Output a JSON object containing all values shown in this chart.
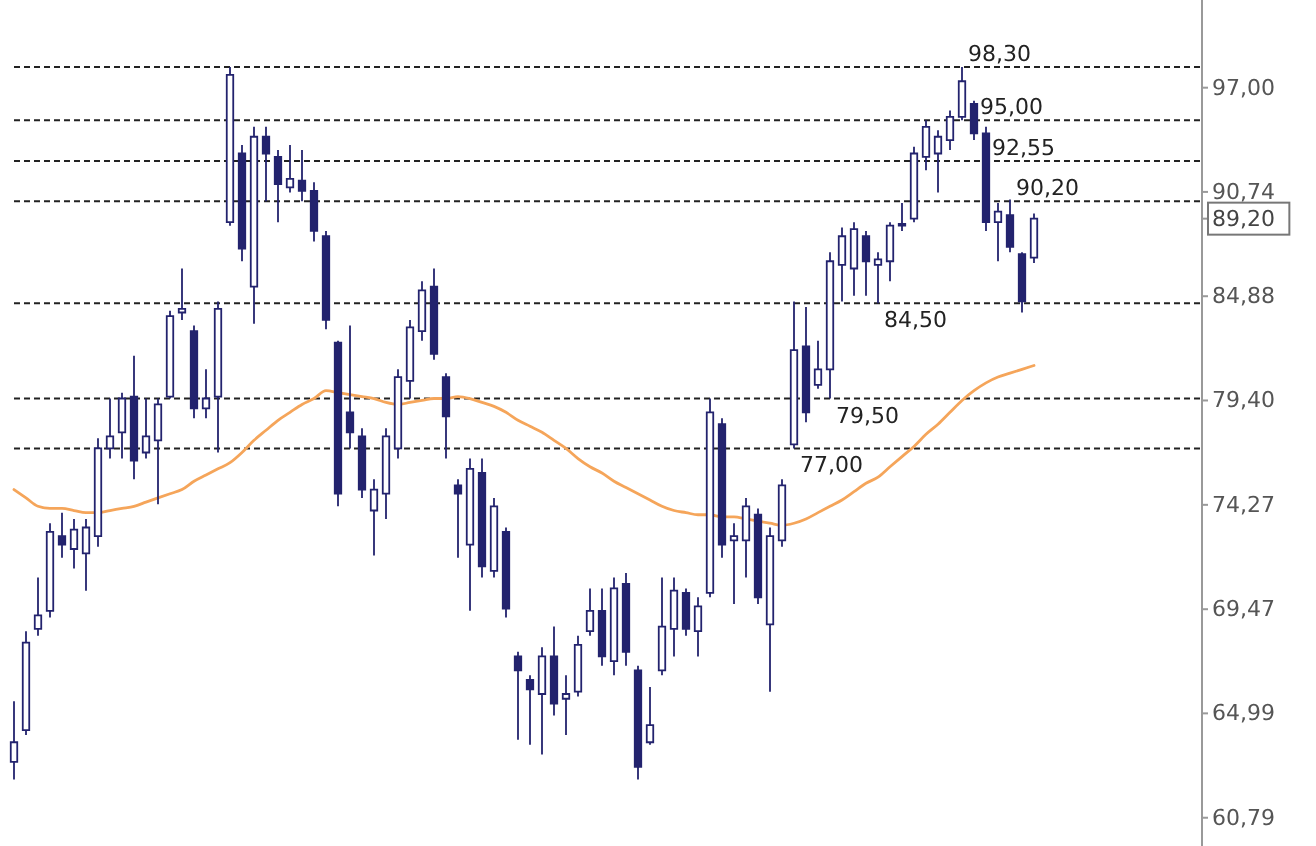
{
  "chart_data": {
    "type": "candlestick",
    "categories": [
      null,
      null,
      null,
      null,
      null,
      null,
      null,
      null,
      null,
      null,
      null,
      null,
      null,
      null,
      null,
      null,
      null,
      null,
      null,
      null,
      null,
      null,
      null,
      null,
      null,
      null,
      null,
      null,
      null,
      null,
      null,
      null,
      null,
      null,
      null,
      null,
      null,
      null,
      null,
      null,
      null,
      null,
      null,
      null,
      null,
      null,
      null,
      null,
      null,
      null,
      null,
      null,
      null,
      null,
      null,
      null,
      null,
      null,
      null,
      null,
      null,
      null,
      null,
      null,
      null,
      null,
      null,
      null,
      null,
      null,
      null,
      null,
      null,
      null,
      null,
      null,
      null,
      null,
      null,
      null,
      null,
      null,
      null,
      null,
      null,
      null,
      null,
      null,
      null,
      null,
      null,
      null,
      null,
      null,
      null,
      null,
      null,
      null,
      null,
      null
    ],
    "series": [
      {
        "color": "#23236e",
        "ohlc": [
          [
            63.0,
            65.5,
            62.3,
            63.8
          ],
          [
            64.3,
            68.5,
            64.1,
            68.0
          ],
          [
            68.6,
            70.9,
            68.3,
            69.2
          ],
          [
            69.4,
            73.4,
            69.1,
            73.0
          ],
          [
            72.8,
            73.9,
            71.8,
            72.4
          ],
          [
            72.2,
            73.6,
            71.3,
            73.1
          ],
          [
            72.0,
            73.6,
            70.3,
            73.2
          ],
          [
            72.8,
            77.5,
            72.3,
            77.0
          ],
          [
            77.0,
            79.5,
            76.5,
            77.6
          ],
          [
            77.8,
            79.8,
            76.5,
            79.5
          ],
          [
            79.6,
            81.7,
            75.5,
            76.4
          ],
          [
            76.8,
            79.5,
            76.5,
            77.6
          ],
          [
            77.4,
            79.5,
            74.3,
            79.2
          ],
          [
            79.6,
            84.1,
            79.5,
            83.8
          ],
          [
            84.0,
            86.4,
            83.6,
            84.2
          ],
          [
            83.0,
            83.3,
            78.5,
            79.0
          ],
          [
            79.0,
            81.0,
            78.5,
            79.5
          ],
          [
            79.6,
            84.6,
            76.8,
            84.2
          ],
          [
            89.0,
            98.3,
            88.8,
            97.8
          ],
          [
            93.0,
            93.5,
            86.8,
            87.5
          ],
          [
            85.4,
            94.6,
            83.4,
            94.0
          ],
          [
            94.0,
            94.6,
            90.2,
            93.0
          ],
          [
            92.8,
            93.2,
            89.0,
            91.2
          ],
          [
            91.0,
            93.5,
            90.7,
            91.5
          ],
          [
            91.4,
            93.2,
            90.2,
            90.8
          ],
          [
            90.8,
            91.3,
            87.9,
            88.5
          ],
          [
            88.2,
            88.5,
            83.1,
            83.6
          ],
          [
            82.4,
            82.5,
            74.2,
            74.8
          ],
          [
            78.8,
            83.3,
            77.0,
            77.8
          ],
          [
            77.6,
            78.0,
            74.6,
            75.0
          ],
          [
            74.0,
            75.5,
            71.9,
            75.0
          ],
          [
            74.8,
            78.0,
            73.6,
            77.6
          ],
          [
            77.0,
            81.0,
            76.5,
            80.6
          ],
          [
            80.4,
            83.6,
            79.5,
            83.2
          ],
          [
            83.0,
            85.7,
            82.5,
            85.2
          ],
          [
            85.4,
            86.4,
            81.5,
            81.8
          ],
          [
            80.6,
            80.8,
            76.5,
            78.6
          ],
          [
            75.2,
            75.5,
            71.8,
            74.8
          ],
          [
            72.4,
            76.5,
            69.4,
            76.0
          ],
          [
            75.8,
            76.5,
            70.9,
            71.4
          ],
          [
            71.2,
            74.6,
            70.9,
            74.2
          ],
          [
            73.0,
            73.2,
            69.1,
            69.5
          ],
          [
            67.4,
            67.6,
            63.9,
            66.8
          ],
          [
            66.4,
            66.6,
            63.7,
            66.0
          ],
          [
            65.8,
            67.8,
            63.3,
            67.4
          ],
          [
            67.4,
            68.7,
            64.9,
            65.4
          ],
          [
            65.6,
            66.6,
            64.1,
            65.8
          ],
          [
            65.9,
            68.3,
            65.7,
            67.9
          ],
          [
            68.5,
            70.4,
            68.3,
            69.4
          ],
          [
            69.4,
            70.4,
            67.0,
            67.4
          ],
          [
            67.2,
            70.9,
            66.6,
            70.4
          ],
          [
            70.6,
            71.1,
            67.0,
            67.6
          ],
          [
            66.8,
            67.0,
            62.3,
            62.8
          ],
          [
            63.8,
            66.1,
            63.7,
            64.5
          ],
          [
            66.8,
            70.9,
            66.6,
            68.7
          ],
          [
            68.6,
            70.9,
            67.4,
            70.3
          ],
          [
            70.2,
            70.4,
            68.3,
            68.6
          ],
          [
            68.5,
            70.0,
            67.4,
            69.6
          ],
          [
            70.2,
            79.5,
            70.0,
            78.8
          ],
          [
            78.2,
            78.5,
            71.8,
            72.4
          ],
          [
            72.6,
            73.4,
            69.7,
            72.8
          ],
          [
            72.6,
            74.6,
            70.9,
            74.2
          ],
          [
            73.8,
            74.1,
            69.7,
            70.0
          ],
          [
            68.8,
            73.2,
            65.9,
            72.8
          ],
          [
            72.6,
            75.5,
            72.3,
            75.2
          ],
          [
            77.2,
            84.6,
            77.0,
            82.0
          ],
          [
            82.2,
            84.3,
            78.3,
            78.8
          ],
          [
            80.2,
            82.5,
            80.0,
            81.0
          ],
          [
            81.0,
            87.3,
            79.5,
            86.8
          ],
          [
            86.6,
            88.7,
            84.6,
            88.2
          ],
          [
            86.4,
            89.0,
            84.9,
            88.6
          ],
          [
            88.2,
            88.5,
            84.9,
            86.8
          ],
          [
            86.6,
            87.3,
            84.5,
            86.9
          ],
          [
            86.8,
            89.0,
            85.7,
            88.8
          ],
          [
            88.8,
            90.1,
            88.5,
            88.9
          ],
          [
            89.2,
            93.4,
            89.0,
            93.0
          ],
          [
            92.8,
            95.0,
            92.0,
            94.6
          ],
          [
            93.0,
            94.4,
            90.7,
            94.0
          ],
          [
            93.8,
            95.6,
            93.2,
            95.2
          ],
          [
            95.2,
            98.3,
            95.0,
            97.4
          ],
          [
            96.0,
            96.2,
            93.8,
            94.2
          ],
          [
            94.2,
            94.6,
            88.5,
            89.0
          ],
          [
            89.0,
            90.1,
            86.8,
            89.6
          ],
          [
            89.4,
            90.3,
            87.3,
            87.6
          ],
          [
            87.2,
            87.3,
            84.0,
            84.6
          ],
          [
            87.0,
            89.5,
            86.7,
            89.2
          ],
          null,
          null,
          null,
          null,
          null,
          null,
          null,
          null,
          null,
          null,
          null,
          null,
          null,
          null
        ]
      },
      {
        "type": "line",
        "color": "#f5a55a",
        "values": [
          75.0,
          74.6,
          74.2,
          74.1,
          74.1,
          74.0,
          73.9,
          73.9,
          74.0,
          74.1,
          74.2,
          74.4,
          74.6,
          74.8,
          75.0,
          75.4,
          75.7,
          76.0,
          76.3,
          76.8,
          77.4,
          77.9,
          78.4,
          78.8,
          79.2,
          79.5,
          79.9,
          79.8,
          79.7,
          79.6,
          79.5,
          79.3,
          79.2,
          79.3,
          79.4,
          79.5,
          79.5,
          79.6,
          79.5,
          79.3,
          79.1,
          78.8,
          78.4,
          78.1,
          77.8,
          77.4,
          77.0,
          76.5,
          76.1,
          75.8,
          75.4,
          75.1,
          74.8,
          74.5,
          74.2,
          74.0,
          73.9,
          73.8,
          73.8,
          73.7,
          73.7,
          73.6,
          73.5,
          73.4,
          73.3,
          73.4,
          73.6,
          73.9,
          74.2,
          74.5,
          74.9,
          75.3,
          75.6,
          76.1,
          76.6,
          77.1,
          77.7,
          78.2,
          78.8,
          79.4,
          79.9,
          80.3,
          80.6,
          80.8,
          81.0,
          81.2,
          null,
          null,
          null,
          null,
          null,
          null,
          null,
          null,
          null,
          null,
          null,
          null,
          null,
          null
        ]
      }
    ],
    "log": true,
    "ylim": [
      59.7,
      102.6
    ],
    "yticks": [
      {
        "value": 60.79,
        "label": "60,79"
      },
      {
        "value": 64.99,
        "label": "64,99"
      },
      {
        "value": 69.47,
        "label": "69,47"
      },
      {
        "value": 74.27,
        "label": "74,27"
      },
      {
        "value": 79.4,
        "label": "79,40"
      },
      {
        "value": 84.88,
        "label": "84,88"
      },
      {
        "value": 89.2,
        "label": "89,20"
      },
      {
        "value": 90.74,
        "label": "90,74"
      },
      {
        "value": 97,
        "label": "97,00"
      }
    ],
    "tick_labels": "y",
    "ref_lines": [
      {
        "axis": "y",
        "value": 98.3,
        "label": "98,30",
        "line_style": "dashed"
      },
      {
        "axis": "y",
        "value": 95,
        "label": "95,00",
        "line_style": "dashed"
      },
      {
        "axis": "y",
        "value": 92.55,
        "label": "92,55",
        "line_style": "dashed"
      },
      {
        "axis": "y",
        "value": 90.2,
        "label": "90,20",
        "line_style": "dashed"
      },
      {
        "axis": "y",
        "value": 84.5,
        "label": "84,50",
        "line_style": "dashed"
      },
      {
        "axis": "y",
        "value": 79.5,
        "label": "79,50",
        "line_style": "dashed"
      },
      {
        "axis": "y",
        "value": 77,
        "label": "77,00",
        "line_style": "dashed"
      }
    ]
  }
}
